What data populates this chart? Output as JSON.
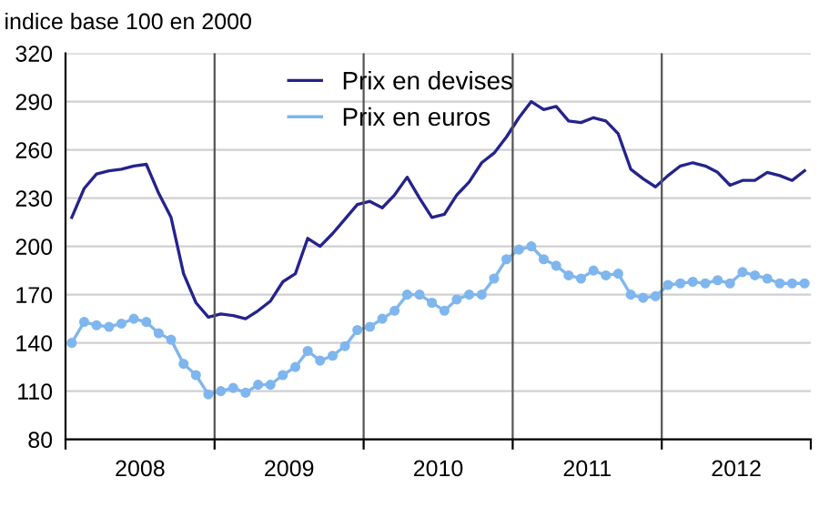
{
  "chart_data": {
    "type": "line",
    "ylabel": "indice base 100 en 2000",
    "x": [
      2008.042,
      2008.125,
      2008.208,
      2008.292,
      2008.375,
      2008.458,
      2008.542,
      2008.625,
      2008.708,
      2008.792,
      2008.875,
      2008.958,
      2009.042,
      2009.125,
      2009.208,
      2009.292,
      2009.375,
      2009.458,
      2009.542,
      2009.625,
      2009.708,
      2009.792,
      2009.875,
      2009.958,
      2010.042,
      2010.125,
      2010.208,
      2010.292,
      2010.375,
      2010.458,
      2010.542,
      2010.625,
      2010.708,
      2010.792,
      2010.875,
      2010.958,
      2011.042,
      2011.125,
      2011.208,
      2011.292,
      2011.375,
      2011.458,
      2011.542,
      2011.625,
      2011.708,
      2011.792,
      2011.875,
      2011.958,
      2012.042,
      2012.125,
      2012.208,
      2012.292,
      2012.375,
      2012.458,
      2012.542,
      2012.625,
      2012.708,
      2012.792,
      2012.875,
      2012.958
    ],
    "series": [
      {
        "name": "Prix en devises",
        "color": "#25238c",
        "marker": "none",
        "values": [
          218,
          236,
          245,
          247,
          248,
          250,
          251,
          233,
          218,
          183,
          165,
          156,
          158,
          157,
          155,
          160,
          166,
          178,
          183,
          205,
          200,
          208,
          217,
          226,
          228,
          224,
          232,
          243,
          230,
          218,
          220,
          232,
          240,
          252,
          258,
          268,
          280,
          290,
          285,
          287,
          278,
          277,
          280,
          278,
          270,
          248,
          242,
          237,
          244,
          250,
          252,
          250,
          246,
          238,
          241,
          241,
          246,
          244,
          241,
          247
        ]
      },
      {
        "name": "Prix en euros",
        "color": "#7fb6ee",
        "marker": "circle",
        "values": [
          140,
          153,
          151,
          150,
          152,
          155,
          153,
          146,
          142,
          127,
          120,
          108,
          110,
          112,
          109,
          114,
          114,
          120,
          125,
          135,
          129,
          132,
          138,
          148,
          150,
          155,
          160,
          170,
          170,
          165,
          160,
          167,
          170,
          170,
          180,
          192,
          198,
          200,
          192,
          188,
          182,
          180,
          185,
          182,
          183,
          170,
          168,
          169,
          176,
          177,
          178,
          177,
          179,
          177,
          184,
          182,
          180,
          177,
          177,
          177
        ]
      }
    ],
    "xlim": [
      2008,
      2013
    ],
    "xticks": [
      {
        "value": 2008,
        "label": null
      },
      {
        "value": 2008.5,
        "label": "2008"
      },
      {
        "value": 2009,
        "label": null
      },
      {
        "value": 2009.5,
        "label": "2009"
      },
      {
        "value": 2010,
        "label": null
      },
      {
        "value": 2010.5,
        "label": "2010"
      },
      {
        "value": 2011,
        "label": null
      },
      {
        "value": 2011.5,
        "label": "2011"
      },
      {
        "value": 2012,
        "label": null
      },
      {
        "value": 2012.5,
        "label": "2012"
      },
      {
        "value": 2013,
        "label": null
      }
    ],
    "ylim": [
      80,
      320
    ],
    "yticks": [
      80,
      110,
      140,
      170,
      200,
      230,
      260,
      290,
      320
    ],
    "ref_lines": [
      {
        "axis": "x",
        "value": 2009,
        "color": "#555555"
      },
      {
        "axis": "x",
        "value": 2010,
        "color": "#555555"
      },
      {
        "axis": "x",
        "value": 2011,
        "color": "#555555"
      },
      {
        "axis": "x",
        "value": 2012,
        "color": "#555555"
      }
    ],
    "grid": "y",
    "legend": "top"
  }
}
